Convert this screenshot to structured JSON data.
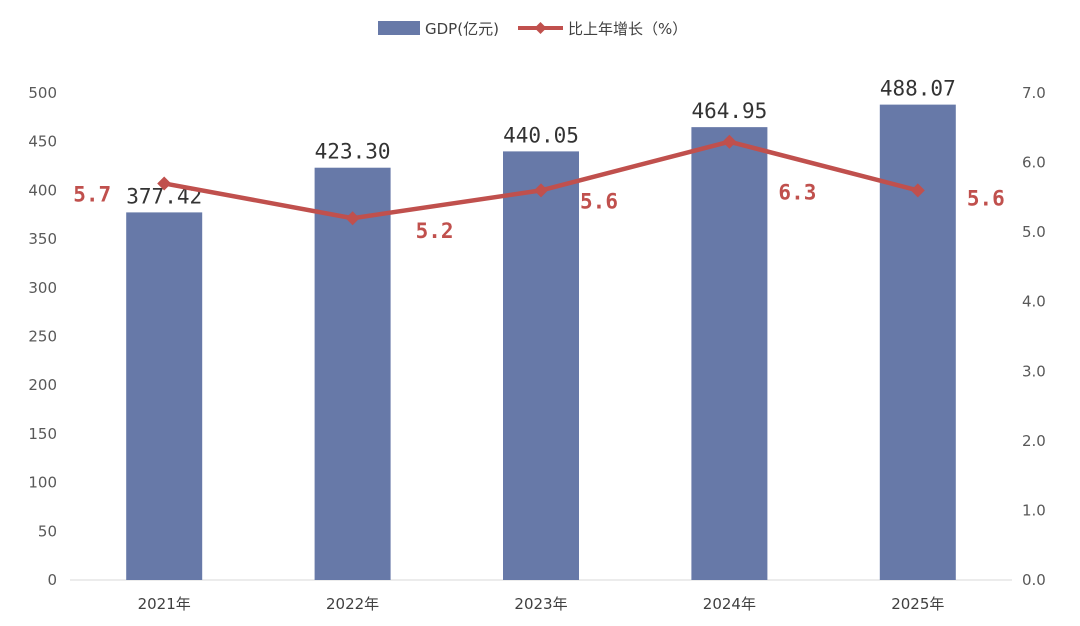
{
  "chart_data": {
    "type": "bar",
    "categories": [
      "2021年",
      "2022年",
      "2023年",
      "2024年",
      "2025年"
    ],
    "series": [
      {
        "name": "GDP(亿元)",
        "type": "bar",
        "axis": "left",
        "values": [
          377.42,
          423.3,
          440.05,
          464.95,
          488.07
        ],
        "labels": [
          "377.42",
          "423.30",
          "440.05",
          "464.95",
          "488.07"
        ],
        "color": "#6779A8"
      },
      {
        "name": "比上年增长（%）",
        "type": "line",
        "axis": "right",
        "values": [
          5.7,
          5.2,
          5.6,
          6.3,
          5.6
        ],
        "labels": [
          "5.7",
          "5.2",
          "5.6",
          "6.3",
          "5.6"
        ],
        "color": "#C0504D"
      }
    ],
    "y_left": {
      "range": [
        0,
        500
      ],
      "ticks": [
        "0",
        "50",
        "100",
        "150",
        "200",
        "250",
        "300",
        "350",
        "400",
        "450",
        "500"
      ]
    },
    "y_right": {
      "range": [
        0,
        7
      ],
      "ticks": [
        "0.0",
        "1.0",
        "2.0",
        "3.0",
        "4.0",
        "5.0",
        "6.0",
        "7.0"
      ]
    },
    "grid": false,
    "legend_position": "top-center"
  }
}
